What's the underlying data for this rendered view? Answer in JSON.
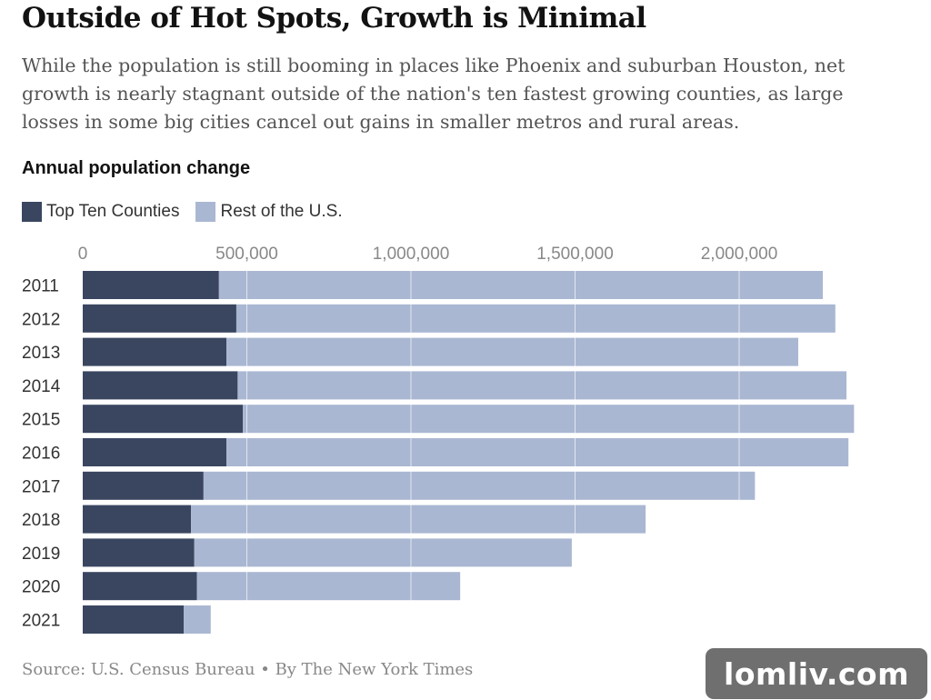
{
  "headline": "Outside of Hot Spots, Growth is Minimal",
  "dek": "While the population is still booming in places like Phoenix and suburban Houston, net growth is nearly stagnant outside of the nation's ten fastest growing counties, as large losses in some big cities cancel out gains in smaller metros and rural areas.",
  "footer": {
    "source": "Source: U.S. Census Bureau",
    "separator": "•",
    "byline": "By The New York Times"
  },
  "watermark": "lomliv.com",
  "colors": {
    "top_ten": "#3a4660",
    "rest": "#aab7d2",
    "gridline": "#ffffff"
  },
  "chart_data": {
    "type": "bar",
    "orientation": "horizontal",
    "stacked": true,
    "title": "Annual population change",
    "categories": [
      "2011",
      "2012",
      "2013",
      "2014",
      "2015",
      "2016",
      "2017",
      "2018",
      "2019",
      "2020",
      "2021"
    ],
    "series": [
      {
        "name": "Top Ten Counties",
        "values": [
          415000,
          468000,
          438000,
          472000,
          488000,
          438000,
          368000,
          330000,
          340000,
          348000,
          308000
        ]
      },
      {
        "name": "Rest of the U.S.",
        "values": [
          1840000,
          1825000,
          1742000,
          1855000,
          1862000,
          1895000,
          1680000,
          1385000,
          1150000,
          802000,
          82000
        ]
      }
    ],
    "xlim": [
      0,
      2360000
    ],
    "xticks": [
      0,
      500000,
      1000000,
      1500000,
      2000000
    ],
    "xtick_labels": [
      "0",
      "500,000",
      "1,000,000",
      "1,500,000",
      "2,000,000"
    ],
    "axis_position": "top",
    "grid": true,
    "legend_position": "top-left"
  }
}
